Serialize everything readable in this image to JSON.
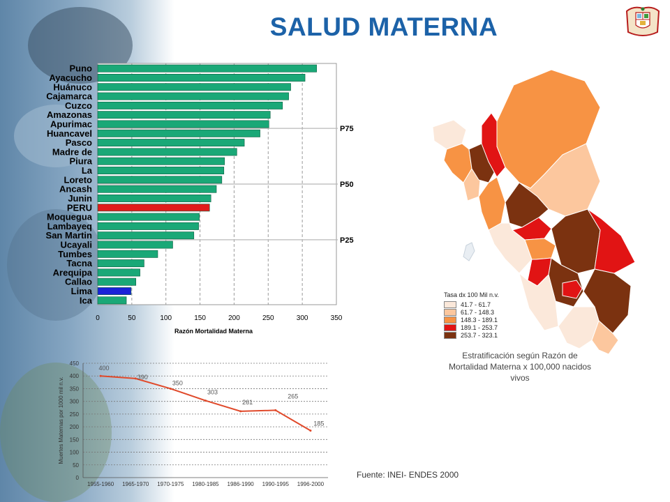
{
  "title": "SALUD MATERNA",
  "colors": {
    "title": "#1c62a8",
    "bar": "#1aa877",
    "bar_peru": "#e11b1b",
    "bar_lima": "#1a22d8",
    "line": "#e0492a",
    "legend": [
      "#fbe8da",
      "#fcc79e",
      "#f79344",
      "#e11414",
      "#7b3210"
    ]
  },
  "chart_data": [
    {
      "type": "bar",
      "orientation": "horizontal",
      "categories": [
        "Puno",
        "Ayacucho",
        "Huánuco",
        "Cajamarca",
        "Cuzco",
        "Amazonas",
        "Apurimac",
        "Huancavel",
        "Pasco",
        "Madre de",
        "Piura",
        "La",
        "Loreto",
        "Ancash",
        "Junin",
        "PERU",
        "Moquegua",
        "Lambayeq",
        "San Martin",
        "Ucayali",
        "Tumbes",
        "Tacna",
        "Arequipa",
        "Callao",
        "Lima",
        "Ica"
      ],
      "values": [
        321,
        304,
        283,
        280,
        271,
        253,
        251,
        238,
        215,
        204,
        186,
        185,
        182,
        174,
        166,
        164,
        149,
        148,
        141,
        110,
        88,
        68,
        62,
        56,
        49,
        42
      ],
      "highlight": {
        "PERU": "national",
        "Lima": "capital"
      },
      "xlabel": "Razón Mortalidad Materna",
      "xticks": [
        0,
        50,
        100,
        150,
        200,
        250,
        300,
        350
      ],
      "xlim": [
        0,
        350
      ],
      "reference_lines": [
        {
          "label": "P75",
          "after_category": "Apurimac"
        },
        {
          "label": "P50",
          "after_category": "Loreto"
        },
        {
          "label": "P25",
          "after_category": "San Martin"
        }
      ],
      "grid": true
    },
    {
      "type": "line",
      "categories": [
        "1955-1960",
        "1965-1970",
        "1970-1975",
        "1980-1985",
        "1986-1990",
        "1990-1995",
        "1996-2000"
      ],
      "values": [
        400,
        390,
        350,
        303,
        261,
        265,
        185
      ],
      "ylabel": "Muertes Maternas por 1000 mil n.v.",
      "yticks": [
        0,
        50,
        100,
        150,
        200,
        250,
        300,
        350,
        400,
        450
      ],
      "ylim": [
        0,
        450
      ],
      "data_labels": true,
      "grid": true
    }
  ],
  "map": {
    "legend_title": "Tasa dx 100 Mil n.v.",
    "legend_items": [
      "41.7 - 61.7",
      "61.7 - 148.3",
      "148.3 - 189.1",
      "189.1 - 253.7",
      "253.7 - 323.1"
    ],
    "caption": "Estratificación según Razón de Mortalidad Materna x 100,000 nacidos vivos"
  },
  "source": "Fuente: INEI- ENDES 2000"
}
